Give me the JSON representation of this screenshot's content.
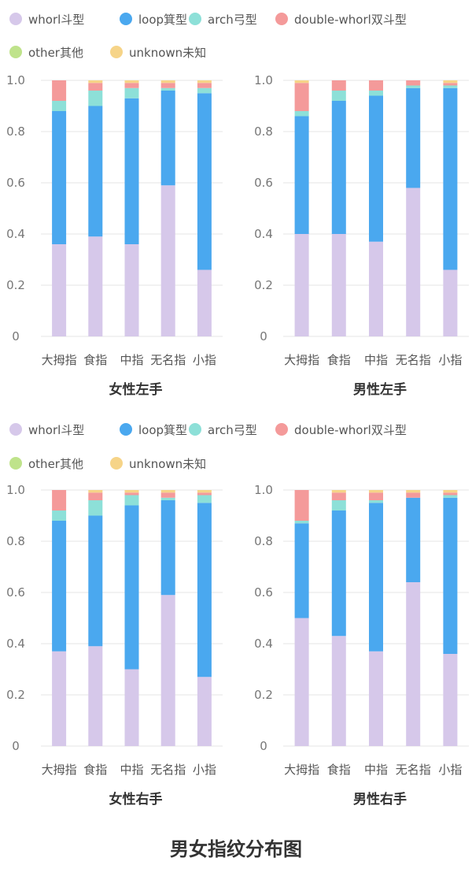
{
  "title": "男女指纹分布图",
  "legend_items": [
    {
      "label": "whorl斗型",
      "color": "#d6c8ea"
    },
    {
      "label": "loop箕型",
      "color": "#4aa8ef"
    },
    {
      "label": "arch弓型",
      "color": "#8de0d8"
    },
    {
      "label": "double-whorl双斗型",
      "color": "#f49a9a"
    },
    {
      "label": "other其他",
      "color": "#bfe38b"
    },
    {
      "label": "unknown未知",
      "color": "#f6d488"
    }
  ],
  "chart_data": [
    {
      "type": "bar",
      "stacked": true,
      "title": "女性左手",
      "categories": [
        "大拇指",
        "食指",
        "中指",
        "无名指",
        "小指"
      ],
      "ylim": [
        0,
        1.0
      ],
      "yticks": [
        "0",
        "0.2",
        "0.4",
        "0.6",
        "0.8",
        "1.0"
      ],
      "grid": true,
      "legend": "top",
      "series": [
        {
          "name": "whorl斗型",
          "values": [
            0.36,
            0.39,
            0.36,
            0.59,
            0.26
          ]
        },
        {
          "name": "loop箕型",
          "values": [
            0.52,
            0.51,
            0.57,
            0.37,
            0.69
          ]
        },
        {
          "name": "arch弓型",
          "values": [
            0.04,
            0.06,
            0.04,
            0.01,
            0.02
          ]
        },
        {
          "name": "double-whorl双斗型",
          "values": [
            0.08,
            0.03,
            0.02,
            0.02,
            0.02
          ]
        },
        {
          "name": "other其他",
          "values": [
            0,
            0,
            0,
            0,
            0
          ]
        },
        {
          "name": "unknown未知",
          "values": [
            0,
            0.01,
            0.01,
            0.01,
            0.01
          ]
        }
      ]
    },
    {
      "type": "bar",
      "stacked": true,
      "title": "男性左手",
      "categories": [
        "大拇指",
        "食指",
        "中指",
        "无名指",
        "小指"
      ],
      "ylim": [
        0,
        1.0
      ],
      "yticks": [
        "0",
        "0.2",
        "0.4",
        "0.6",
        "0.8",
        "1.0"
      ],
      "grid": true,
      "legend": "top",
      "series": [
        {
          "name": "whorl斗型",
          "values": [
            0.4,
            0.4,
            0.37,
            0.58,
            0.26
          ]
        },
        {
          "name": "loop箕型",
          "values": [
            0.46,
            0.52,
            0.57,
            0.39,
            0.71
          ]
        },
        {
          "name": "arch弓型",
          "values": [
            0.02,
            0.04,
            0.02,
            0.01,
            0.01
          ]
        },
        {
          "name": "double-whorl双斗型",
          "values": [
            0.11,
            0.04,
            0.04,
            0.02,
            0.01
          ]
        },
        {
          "name": "other其他",
          "values": [
            0,
            0,
            0,
            0,
            0
          ]
        },
        {
          "name": "unknown未知",
          "values": [
            0.01,
            0,
            0,
            0,
            0.01
          ]
        }
      ]
    },
    {
      "type": "bar",
      "stacked": true,
      "title": "女性右手",
      "categories": [
        "大拇指",
        "食指",
        "中指",
        "无名指",
        "小指"
      ],
      "ylim": [
        0,
        1.0
      ],
      "yticks": [
        "0",
        "0.2",
        "0.4",
        "0.6",
        "0.8",
        "1.0"
      ],
      "grid": true,
      "legend": "top",
      "series": [
        {
          "name": "whorl斗型",
          "values": [
            0.37,
            0.39,
            0.3,
            0.59,
            0.27
          ]
        },
        {
          "name": "loop箕型",
          "values": [
            0.51,
            0.51,
            0.64,
            0.37,
            0.68
          ]
        },
        {
          "name": "arch弓型",
          "values": [
            0.04,
            0.06,
            0.04,
            0.01,
            0.03
          ]
        },
        {
          "name": "double-whorl双斗型",
          "values": [
            0.08,
            0.03,
            0.01,
            0.02,
            0.01
          ]
        },
        {
          "name": "other其他",
          "values": [
            0,
            0,
            0,
            0,
            0
          ]
        },
        {
          "name": "unknown未知",
          "values": [
            0,
            0.01,
            0.01,
            0.01,
            0.01
          ]
        }
      ]
    },
    {
      "type": "bar",
      "stacked": true,
      "title": "男性右手",
      "categories": [
        "大拇指",
        "食指",
        "中指",
        "无名指",
        "小指"
      ],
      "ylim": [
        0,
        1.0
      ],
      "yticks": [
        "0",
        "0.2",
        "0.4",
        "0.6",
        "0.8",
        "1.0"
      ],
      "grid": true,
      "legend": "top",
      "series": [
        {
          "name": "whorl斗型",
          "values": [
            0.5,
            0.43,
            0.37,
            0.64,
            0.36
          ]
        },
        {
          "name": "loop箕型",
          "values": [
            0.37,
            0.49,
            0.58,
            0.33,
            0.61
          ]
        },
        {
          "name": "arch弓型",
          "values": [
            0.01,
            0.04,
            0.01,
            0,
            0.01
          ]
        },
        {
          "name": "double-whorl双斗型",
          "values": [
            0.12,
            0.03,
            0.03,
            0.02,
            0.01
          ]
        },
        {
          "name": "other其他",
          "values": [
            0,
            0,
            0,
            0,
            0
          ]
        },
        {
          "name": "unknown未知",
          "values": [
            0,
            0.01,
            0.01,
            0.01,
            0.01
          ]
        }
      ]
    }
  ]
}
